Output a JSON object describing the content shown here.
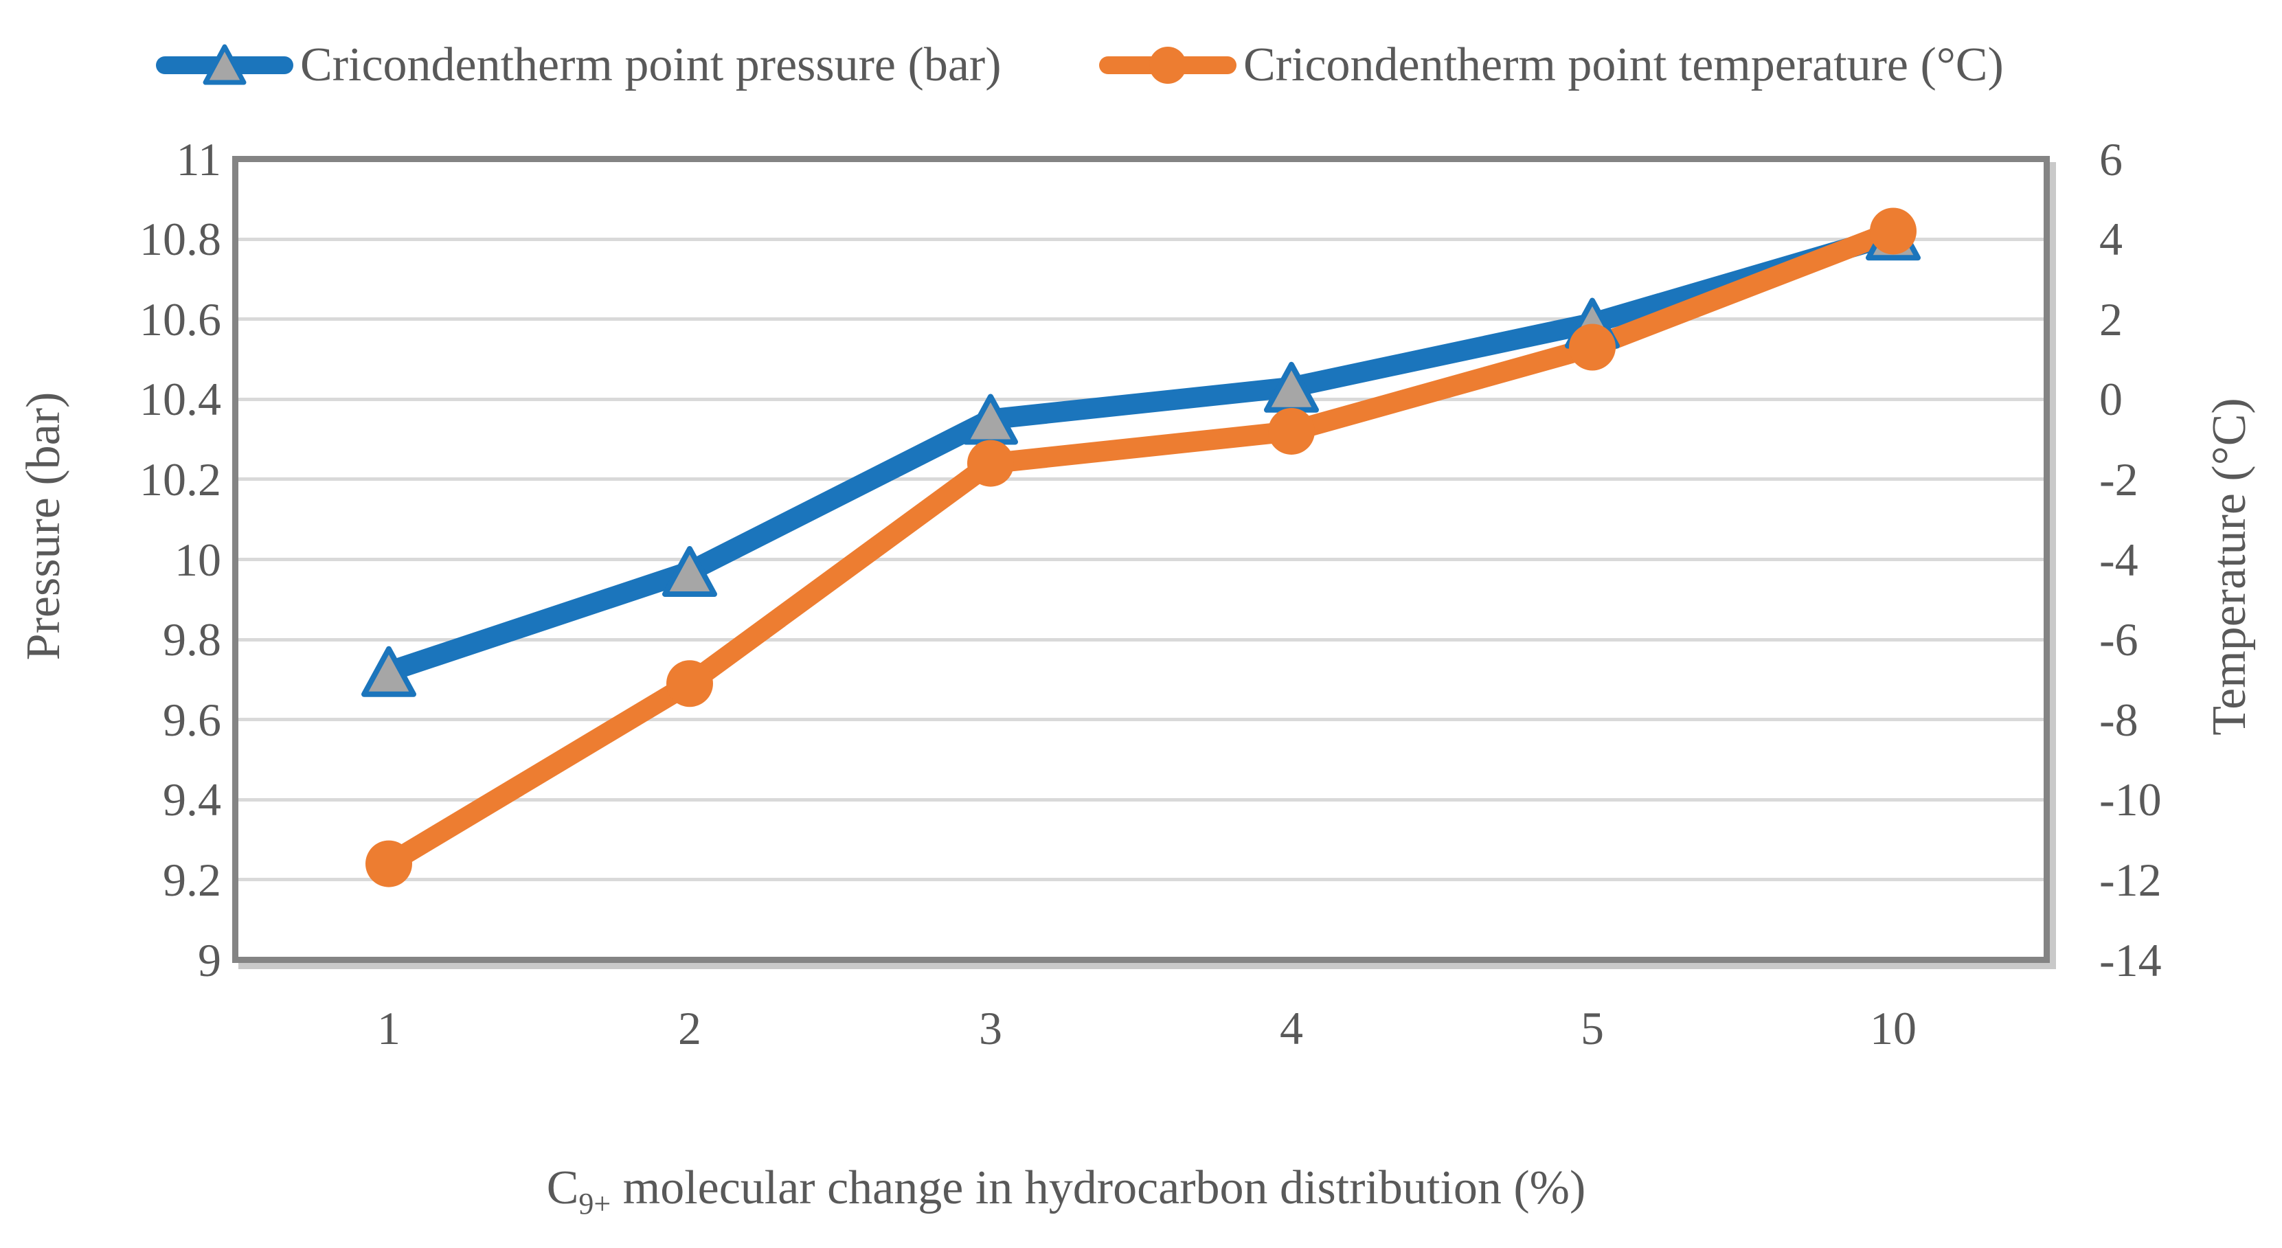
{
  "figure": {
    "background": "#ffffff",
    "text_color": "#595959"
  },
  "chart_data": {
    "type": "line",
    "title": "",
    "legend_position": "top",
    "grid": {
      "on": true,
      "color": "#D9D9D9",
      "border_color": "#848484",
      "shadow_color": "#c9c9c9"
    },
    "x_categories": [
      "1",
      "2",
      "3",
      "4",
      "5",
      "10"
    ],
    "x_axis_title": {
      "prefix": "C",
      "subscript": "9+",
      "rest": " molecular change in hydrocarbon distribution (%)"
    },
    "left_axis": {
      "label": "Pressure (bar)",
      "min": 9,
      "max": 11,
      "tick_step": 0.2,
      "ticks": [
        "11",
        "10.8",
        "10.6",
        "10.4",
        "10.2",
        "10",
        "9.8",
        "9.6",
        "9.4",
        "9.2",
        "9"
      ]
    },
    "right_axis": {
      "label": "Temperature (°C)",
      "min": -14,
      "max": 6,
      "tick_step": 2,
      "ticks": [
        "6",
        "4",
        "2",
        "0",
        "-2",
        "-4",
        "-6",
        "-8",
        "-10",
        "-12",
        "-14"
      ]
    },
    "series": [
      {
        "name": "Cricondentherm point pressure (bar)",
        "axis": "left",
        "color": "#1B75BC",
        "marker": "triangle",
        "marker_fill": "#A6A6A6",
        "values": [
          9.72,
          9.97,
          10.35,
          10.43,
          10.59,
          10.81
        ]
      },
      {
        "name": "Cricondentherm point temperature (°C)",
        "axis": "right",
        "color": "#ED7D31",
        "marker": "circle",
        "marker_fill": "#ED7D31",
        "values": [
          -11.6,
          -7.1,
          -1.6,
          -0.8,
          1.3,
          4.2
        ]
      }
    ]
  }
}
